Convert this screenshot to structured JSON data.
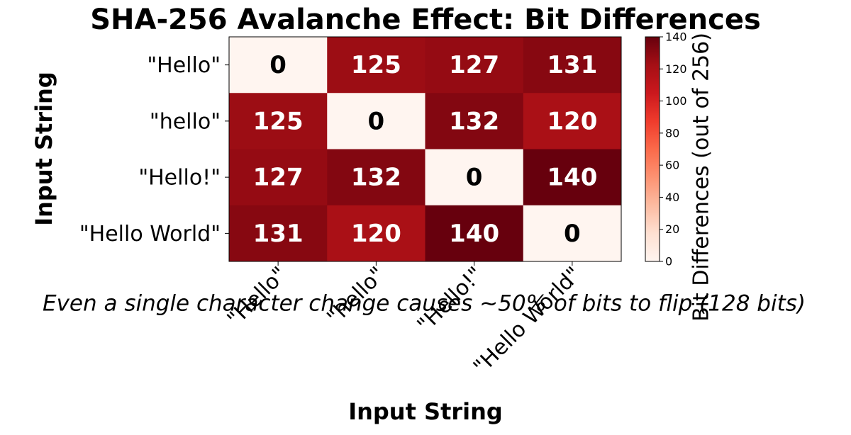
{
  "chart_data": {
    "type": "heatmap",
    "title": "SHA-256 Avalanche Effect: Bit Differences",
    "xlabel": "Input String",
    "ylabel": "Input String",
    "x_categories": [
      "\"Hello\"",
      "\"hello\"",
      "\"Hello!\"",
      "\"Hello World\""
    ],
    "y_categories": [
      "\"Hello\"",
      "\"hello\"",
      "\"Hello!\"",
      "\"Hello World\""
    ],
    "values": [
      [
        0,
        125,
        127,
        131
      ],
      [
        125,
        0,
        132,
        120
      ],
      [
        127,
        132,
        0,
        140
      ],
      [
        131,
        120,
        140,
        0
      ]
    ],
    "colormap": "Reds",
    "clim": [
      0,
      140
    ],
    "colorbar_ticks": [
      0,
      20,
      40,
      60,
      80,
      100,
      120,
      140
    ],
    "colorbar_label": "Bit Differences (out of 256)",
    "annotation": "Even a single character change causes ~50% of bits to flip (128 bits)"
  }
}
